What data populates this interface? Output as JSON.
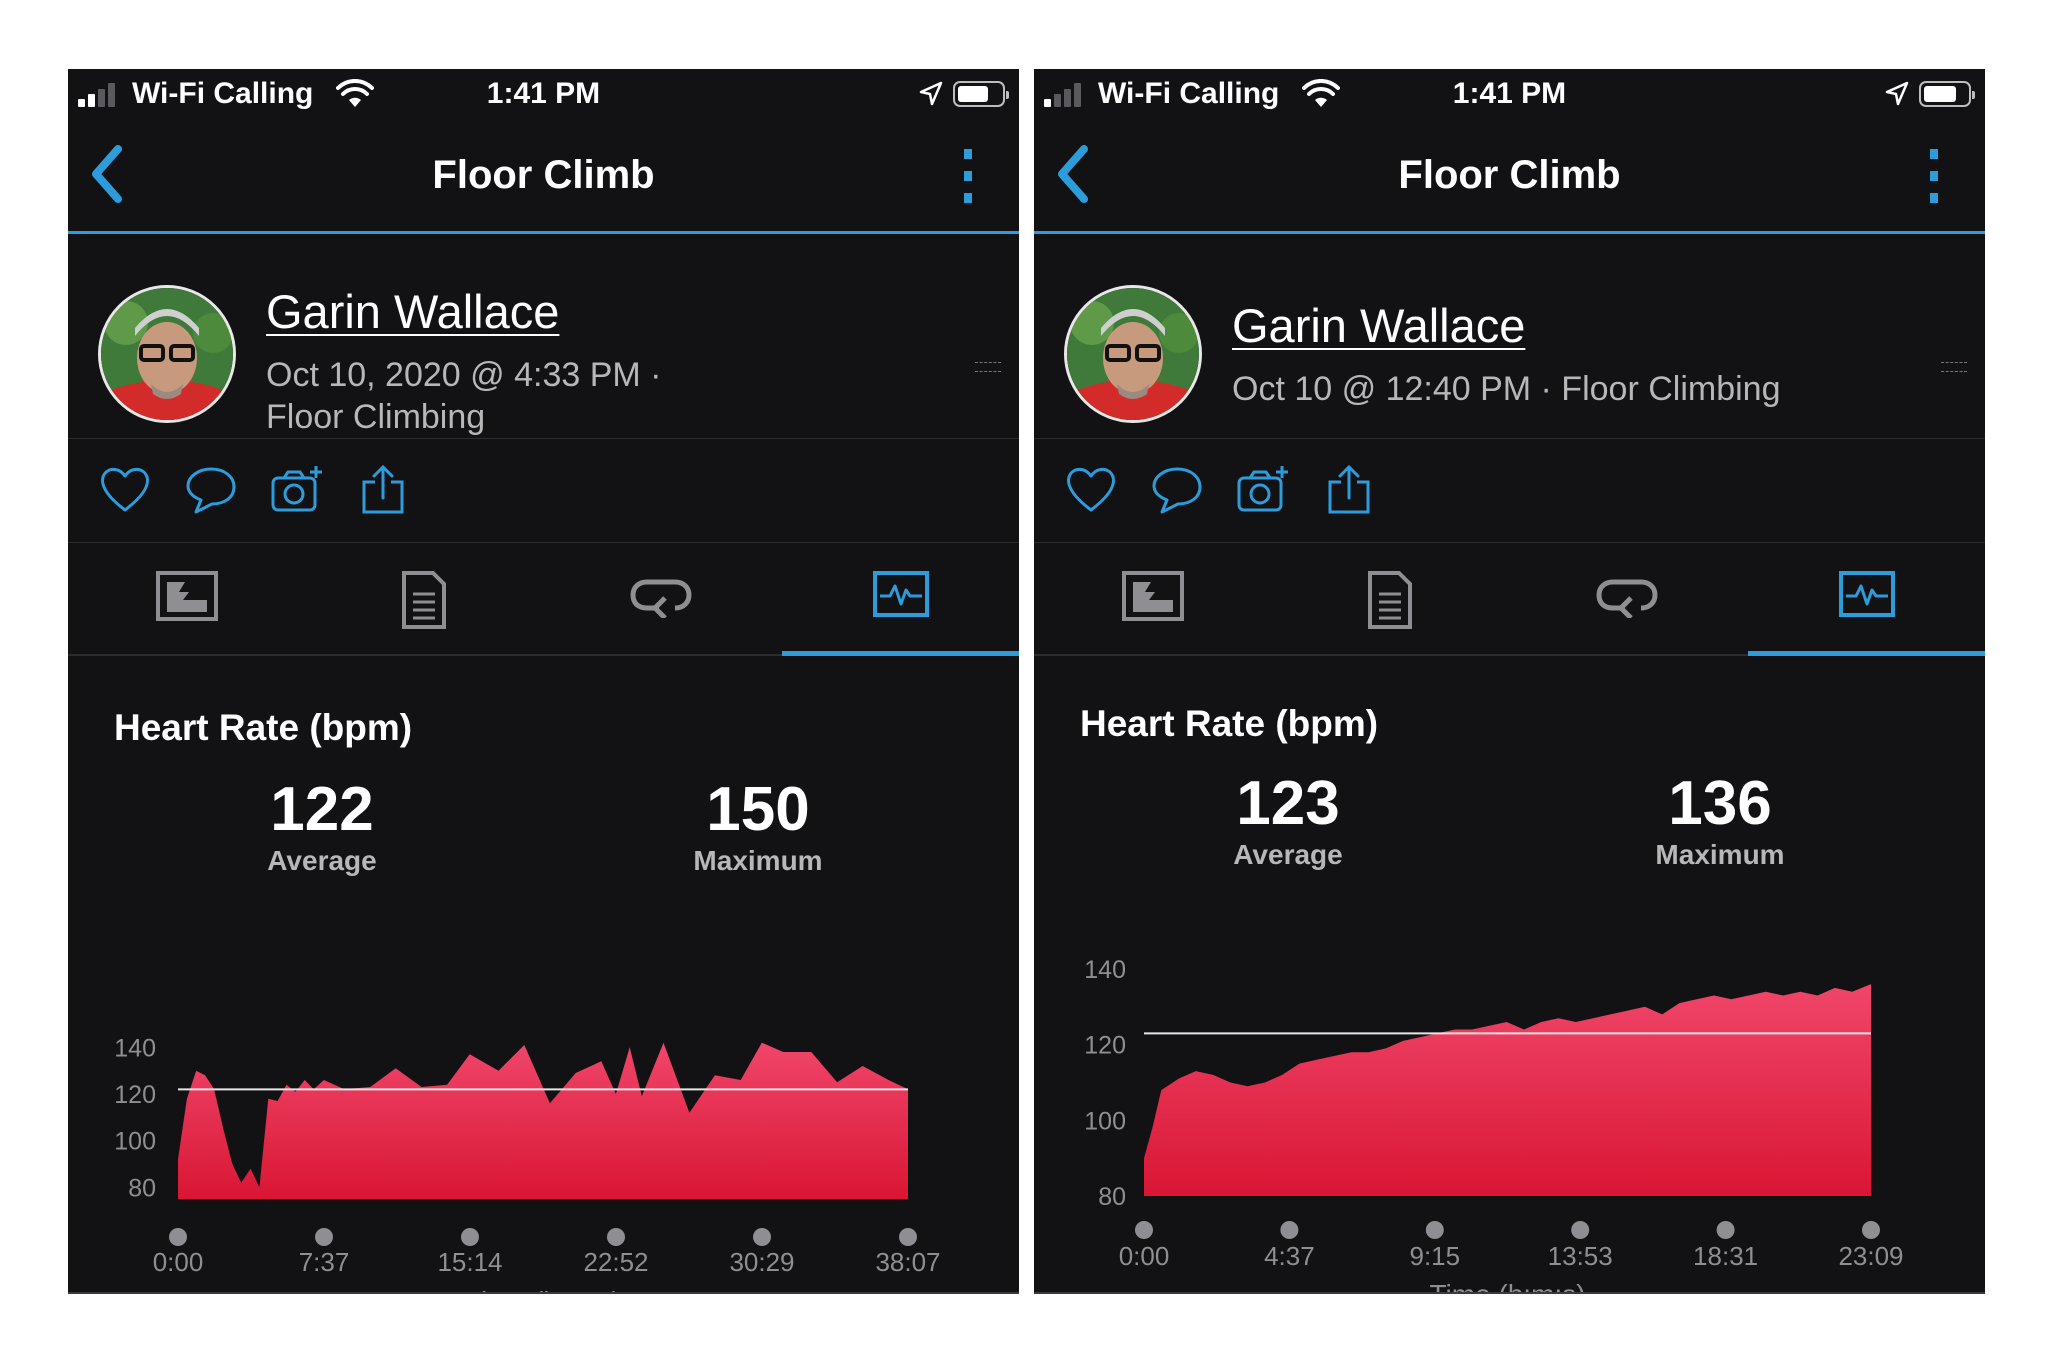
{
  "status_bar": {
    "carrier": "Wi-Fi Calling",
    "time": "1:41 PM"
  },
  "colors": {
    "accent": "#2d9cdb",
    "background": "#121214",
    "hr_fill": "#e8294c"
  },
  "screens": [
    {
      "nav": {
        "title": "Floor Climb"
      },
      "profile": {
        "name": "Garin Wallace",
        "meta_line1": "Oct 10, 2020 @ 4:33 PM ·",
        "meta_line2": "Floor Climbing"
      },
      "heart_rate": {
        "title": "Heart Rate (bpm)",
        "average": {
          "value": "122",
          "label": "Average"
        },
        "maximum": {
          "value": "150",
          "label": "Maximum"
        }
      },
      "chart_data": {
        "type": "area",
        "x": [
          "0:00",
          "0:28",
          "0:57",
          "1:25",
          "1:53",
          "2:22",
          "2:50",
          "3:18",
          "3:47",
          "4:15",
          "4:43",
          "5:12",
          "5:40",
          "6:08",
          "6:37",
          "7:05",
          "7:37",
          "8:41",
          "10:02",
          "11:22",
          "12:43",
          "14:03",
          "15:14",
          "16:44",
          "18:05",
          "19:25",
          "20:46",
          "22:06",
          "22:52",
          "23:35",
          "24:13",
          "25:21",
          "26:42",
          "28:02",
          "29:23",
          "30:29",
          "31:36",
          "33:04",
          "34:25",
          "35:45",
          "37:06",
          "38:07"
        ],
        "series": [
          {
            "values": [
              92,
              118,
              130,
              128,
              122,
              105,
              90,
              82,
              88,
              80,
              118,
              117,
              124,
              121,
              126,
              122,
              126,
              122,
              123,
              131,
              123,
              124,
              137,
              130,
              141,
              116,
              129,
              134,
              120,
              140,
              119,
              142,
              112,
              128,
              126,
              142,
              138,
              138,
              125,
              132,
              126,
              122
            ]
          }
        ],
        "average_line": 122,
        "ylim": [
          75,
          150
        ],
        "y_ticks": [
          140,
          120,
          100,
          80
        ],
        "x_ticks": [
          "0:00",
          "7:37",
          "15:14",
          "22:52",
          "30:29",
          "38:07"
        ],
        "xlabel": "Time (h:m:s)",
        "grid": false
      }
    },
    {
      "nav": {
        "title": "Floor Climb"
      },
      "profile": {
        "name": "Garin Wallace",
        "meta_line1": "Oct 10 @ 12:40 PM · Floor Climbing",
        "meta_line2": ""
      },
      "heart_rate": {
        "title": "Heart Rate (bpm)",
        "average": {
          "value": "123",
          "label": "Average"
        },
        "maximum": {
          "value": "136",
          "label": "Maximum"
        }
      },
      "chart_data": {
        "type": "area",
        "x": [
          "0:00",
          "0:16",
          "0:33",
          "1:06",
          "1:39",
          "2:12",
          "2:45",
          "3:18",
          "3:51",
          "4:24",
          "4:57",
          "5:30",
          "6:03",
          "6:36",
          "7:09",
          "7:42",
          "8:15",
          "8:48",
          "9:21",
          "9:54",
          "10:27",
          "11:00",
          "11:33",
          "12:06",
          "12:39",
          "13:12",
          "13:45",
          "14:18",
          "14:51",
          "15:24",
          "15:57",
          "16:30",
          "17:03",
          "17:36",
          "18:09",
          "18:42",
          "19:15",
          "19:48",
          "20:21",
          "20:54",
          "21:27",
          "22:00",
          "22:33",
          "23:09"
        ],
        "series": [
          {
            "values": [
              90,
              98,
              108,
              111,
              113,
              112,
              110,
              109,
              110,
              112,
              115,
              116,
              117,
              118,
              118,
              119,
              121,
              122,
              123,
              124,
              124,
              125,
              126,
              124,
              126,
              127,
              126,
              127,
              128,
              129,
              130,
              128,
              131,
              132,
              133,
              132,
              133,
              134,
              133,
              134,
              133,
              135,
              134,
              136
            ]
          }
        ],
        "average_line": 123,
        "ylim": [
          80,
          140
        ],
        "y_ticks": [
          140,
          120,
          100,
          80
        ],
        "x_ticks": [
          "0:00",
          "4:37",
          "9:15",
          "13:53",
          "18:31",
          "23:09"
        ],
        "xlabel": "Time (h:m:s)",
        "grid": false
      }
    }
  ]
}
